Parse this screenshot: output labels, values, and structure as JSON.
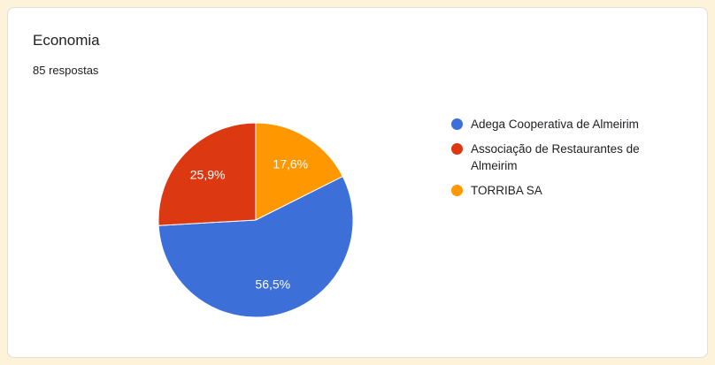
{
  "page": {
    "background_color": "#fcf3da",
    "card_background": "#ffffff"
  },
  "header": {
    "title": "Economia",
    "subtitle": "85 respostas"
  },
  "chart_data": {
    "type": "pie",
    "title": "Economia",
    "subtitle": "85 respostas",
    "total_responses": 85,
    "legend_position": "right",
    "slice_label_color": "#ffffff",
    "label_radius": 0.68,
    "start_angle_deg": 0,
    "draw_order": [
      2,
      0,
      1
    ],
    "series": [
      {
        "name": "Adega Cooperativa de Almeirim",
        "value": 56.5,
        "percent_label": "56,5%",
        "color": "#3c6fd7"
      },
      {
        "name": "Associação de Restaurantes de Almeirim",
        "value": 25.9,
        "percent_label": "25,9%",
        "color": "#dc3912"
      },
      {
        "name": "TORRIBA SA",
        "value": 17.6,
        "percent_label": "17,6%",
        "color": "#ff9800"
      }
    ]
  }
}
